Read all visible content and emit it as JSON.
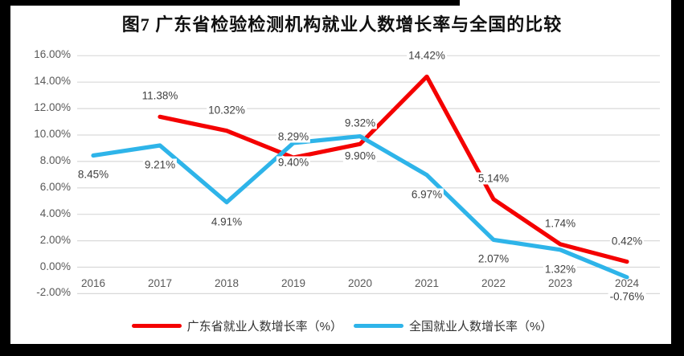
{
  "title": "图7  广东省检验检测机构就业人数增长率与全国的比较",
  "colors": {
    "guangdong_line": "#f40000",
    "national_line": "#2eb4e9",
    "gridline": "#d9d9d9",
    "axis_text": "#595959",
    "data_label_text": "#3f3f3f",
    "border": "#000000"
  },
  "chart_data": {
    "type": "line",
    "categories": [
      "2016",
      "2017",
      "2018",
      "2019",
      "2020",
      "2021",
      "2022",
      "2023",
      "2024"
    ],
    "series": [
      {
        "name": "广东省就业人数增长率（%）",
        "color": "#f40000",
        "values": [
          null,
          11.38,
          10.32,
          8.29,
          9.32,
          14.42,
          5.14,
          1.74,
          0.42
        ],
        "labels": [
          null,
          "11.38%",
          "10.32%",
          "8.29%",
          "9.32%",
          "14.42%",
          "5.14%",
          "1.74%",
          "0.42%"
        ],
        "label_position": "above"
      },
      {
        "name": "全国就业人数增长率（%）",
        "color": "#2eb4e9",
        "values": [
          8.45,
          9.21,
          4.91,
          9.4,
          9.9,
          6.97,
          2.07,
          1.32,
          -0.76
        ],
        "labels": [
          "8.45%",
          "9.21%",
          "4.91%",
          "9.40%",
          "9.90%",
          "6.97%",
          "2.07%",
          "1.32%",
          "-0.76%"
        ],
        "label_position": "below"
      }
    ],
    "ylim": [
      -2,
      16
    ],
    "ytick_step": 2,
    "ytick_labels": [
      "16.00%",
      "14.00%",
      "12.00%",
      "10.00%",
      "8.00%",
      "6.00%",
      "4.00%",
      "2.00%",
      "0.00%",
      "-2.00%"
    ],
    "xlabel": "",
    "ylabel": "",
    "grid": true,
    "legend_position": "bottom"
  }
}
